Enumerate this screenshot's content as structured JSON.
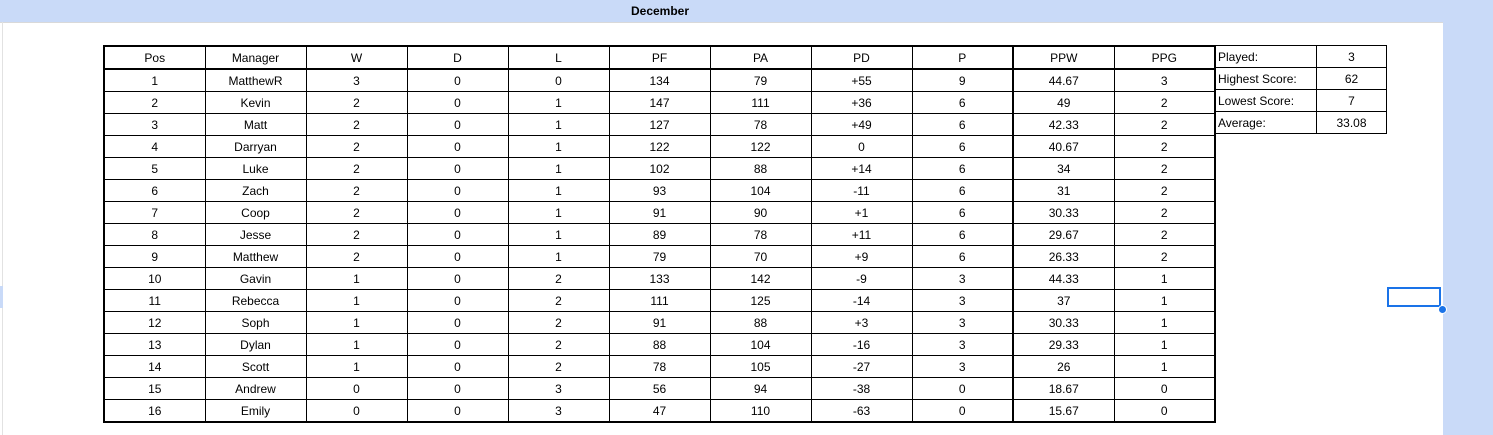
{
  "sheet": {
    "title": "December"
  },
  "standings": {
    "headers": [
      "Pos",
      "Manager",
      "W",
      "D",
      "L",
      "PF",
      "PA",
      "PD",
      "P",
      "PPW",
      "PPG"
    ],
    "rows": [
      [
        "1",
        "MatthewR",
        "3",
        "0",
        "0",
        "134",
        "79",
        "+55",
        "9",
        "44.67",
        "3"
      ],
      [
        "2",
        "Kevin",
        "2",
        "0",
        "1",
        "147",
        "111",
        "+36",
        "6",
        "49",
        "2"
      ],
      [
        "3",
        "Matt",
        "2",
        "0",
        "1",
        "127",
        "78",
        "+49",
        "6",
        "42.33",
        "2"
      ],
      [
        "4",
        "Darryan",
        "2",
        "0",
        "1",
        "122",
        "122",
        "0",
        "6",
        "40.67",
        "2"
      ],
      [
        "5",
        "Luke",
        "2",
        "0",
        "1",
        "102",
        "88",
        "+14",
        "6",
        "34",
        "2"
      ],
      [
        "6",
        "Zach",
        "2",
        "0",
        "1",
        "93",
        "104",
        "-11",
        "6",
        "31",
        "2"
      ],
      [
        "7",
        "Coop",
        "2",
        "0",
        "1",
        "91",
        "90",
        "+1",
        "6",
        "30.33",
        "2"
      ],
      [
        "8",
        "Jesse",
        "2",
        "0",
        "1",
        "89",
        "78",
        "+11",
        "6",
        "29.67",
        "2"
      ],
      [
        "9",
        "Matthew",
        "2",
        "0",
        "1",
        "79",
        "70",
        "+9",
        "6",
        "26.33",
        "2"
      ],
      [
        "10",
        "Gavin",
        "1",
        "0",
        "2",
        "133",
        "142",
        "-9",
        "3",
        "44.33",
        "1"
      ],
      [
        "11",
        "Rebecca",
        "1",
        "0",
        "2",
        "111",
        "125",
        "-14",
        "3",
        "37",
        "1"
      ],
      [
        "12",
        "Soph",
        "1",
        "0",
        "2",
        "91",
        "88",
        "+3",
        "3",
        "30.33",
        "1"
      ],
      [
        "13",
        "Dylan",
        "1",
        "0",
        "2",
        "88",
        "104",
        "-16",
        "3",
        "29.33",
        "1"
      ],
      [
        "14",
        "Scott",
        "1",
        "0",
        "2",
        "78",
        "105",
        "-27",
        "3",
        "26",
        "1"
      ],
      [
        "15",
        "Andrew",
        "0",
        "0",
        "3",
        "56",
        "94",
        "-38",
        "0",
        "18.67",
        "0"
      ],
      [
        "16",
        "Emily",
        "0",
        "0",
        "3",
        "47",
        "110",
        "-63",
        "0",
        "15.67",
        "0"
      ]
    ]
  },
  "stats": [
    {
      "label": "Played:",
      "value": "3"
    },
    {
      "label": "Highest Score:",
      "value": "62"
    },
    {
      "label": "Lowest Score:",
      "value": "7"
    },
    {
      "label": "Average:",
      "value": "33.08"
    }
  ],
  "colors": {
    "header_band": "#c9daf8",
    "selection": "#1a73e8"
  }
}
